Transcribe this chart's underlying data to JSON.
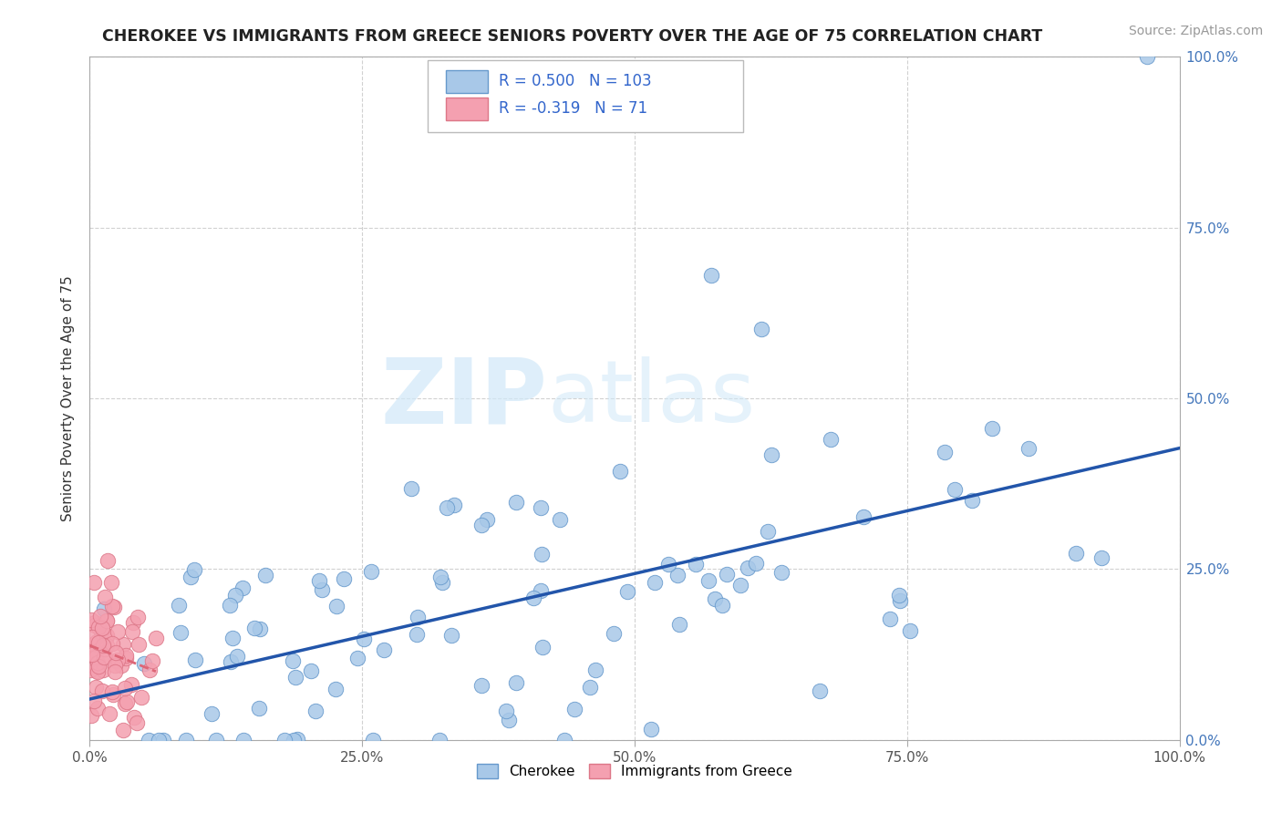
{
  "title": "CHEROKEE VS IMMIGRANTS FROM GREECE SENIORS POVERTY OVER THE AGE OF 75 CORRELATION CHART",
  "source": "Source: ZipAtlas.com",
  "ylabel": "Seniors Poverty Over the Age of 75",
  "xlim": [
    0.0,
    1.0
  ],
  "ylim": [
    0.0,
    1.0
  ],
  "x_ticks": [
    0.0,
    0.25,
    0.5,
    0.75,
    1.0
  ],
  "y_ticks": [
    0.0,
    0.25,
    0.5,
    0.75,
    1.0
  ],
  "x_tick_labels": [
    "0.0%",
    "25.0%",
    "50.0%",
    "75.0%",
    "100.0%"
  ],
  "y_tick_labels": [
    "0.0%",
    "25.0%",
    "50.0%",
    "75.0%",
    "100.0%"
  ],
  "cherokee_R": 0.5,
  "cherokee_N": 103,
  "greece_R": -0.319,
  "greece_N": 71,
  "cherokee_color": "#a8c8e8",
  "cherokee_edge": "#6699cc",
  "greece_color": "#f4a0b0",
  "greece_edge": "#dd7788",
  "cherokee_line_color": "#2255aa",
  "greece_line_color": "#dd6677",
  "background_color": "#ffffff",
  "grid_color": "#cccccc",
  "title_color": "#222222",
  "tick_color": "#4477bb",
  "seed": 12345
}
